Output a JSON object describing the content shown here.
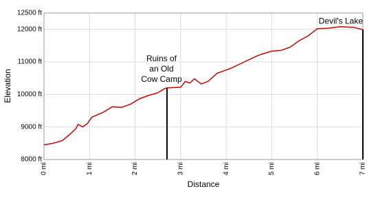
{
  "chart_data": {
    "type": "line",
    "xlabel": "Distance",
    "ylabel": "Elevation",
    "x": [
      0,
      0.2,
      0.4,
      0.55,
      0.7,
      0.75,
      0.85,
      0.95,
      1.05,
      1.3,
      1.5,
      1.7,
      1.9,
      2.1,
      2.3,
      2.5,
      2.65,
      2.7,
      3.0,
      3.1,
      3.2,
      3.3,
      3.45,
      3.6,
      3.8,
      4.1,
      4.4,
      4.7,
      5.0,
      5.2,
      5.4,
      5.6,
      5.8,
      6.0,
      6.2,
      6.5,
      6.8,
      7.0
    ],
    "series": [
      {
        "color": "#cc0000",
        "values": [
          8450,
          8500,
          8580,
          8750,
          8950,
          9080,
          9000,
          9100,
          9300,
          9450,
          9620,
          9600,
          9700,
          9870,
          9970,
          10050,
          10180,
          10200,
          10220,
          10400,
          10350,
          10480,
          10320,
          10400,
          10650,
          10800,
          11000,
          11200,
          11330,
          11350,
          11450,
          11650,
          11800,
          12020,
          12030,
          12080,
          12060,
          11990
        ]
      }
    ],
    "xlim": [
      0,
      7
    ],
    "ylim": [
      8000,
      12500
    ],
    "xticks": [
      {
        "value": 0,
        "label": "0 mi"
      },
      {
        "value": 1,
        "label": "1 mi"
      },
      {
        "value": 2,
        "label": "2 mi"
      },
      {
        "value": 3,
        "label": "3 mi"
      },
      {
        "value": 4,
        "label": "4 mi"
      },
      {
        "value": 5,
        "label": "5 mi"
      },
      {
        "value": 6,
        "label": "6 mi"
      },
      {
        "value": 7,
        "label": "7 mi"
      }
    ],
    "yticks": [
      {
        "value": 8000,
        "label": "8000 ft"
      },
      {
        "value": 9000,
        "label": "9000 ft"
      },
      {
        "value": 10000,
        "label": "10000 ft"
      },
      {
        "value": 11000,
        "label": "11000 ft"
      },
      {
        "value": 12000,
        "label": "12000 ft"
      },
      {
        "value": 12500,
        "label": "12500 ft"
      }
    ],
    "grid": true,
    "annotations": [
      {
        "lines": [
          "Ruins of",
          "an Old",
          "Cow Camp"
        ],
        "x": 2.7,
        "y": 10200
      },
      {
        "lines": [
          "Devil's Lake"
        ],
        "x": 7.0,
        "y": 11990
      }
    ]
  }
}
